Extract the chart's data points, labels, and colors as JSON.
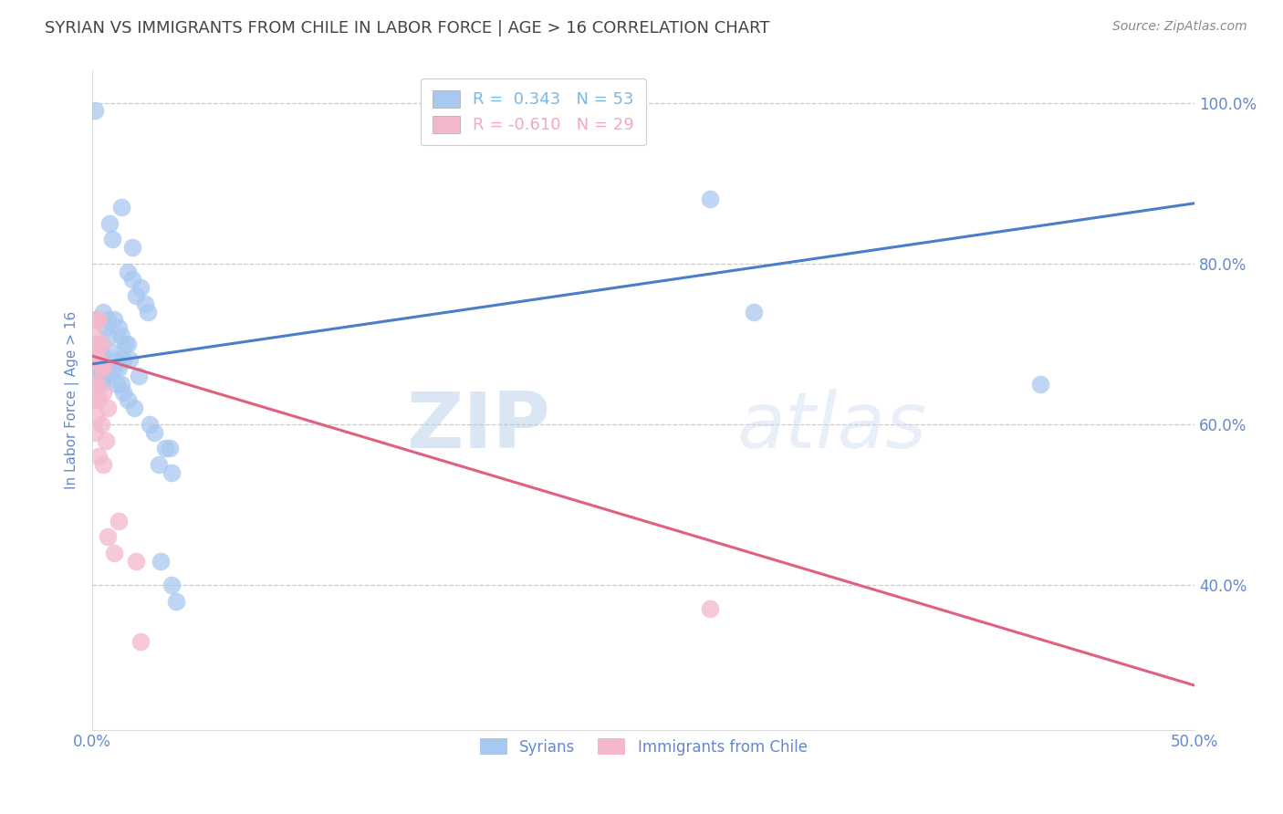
{
  "title": "SYRIAN VS IMMIGRANTS FROM CHILE IN LABOR FORCE | AGE > 16 CORRELATION CHART",
  "source": "Source: ZipAtlas.com",
  "ylabel": "In Labor Force | Age > 16",
  "xlim": [
    0.0,
    0.5
  ],
  "ylim": [
    0.22,
    1.04
  ],
  "yticks": [
    0.4,
    0.6,
    0.8,
    1.0
  ],
  "xticks": [
    0.0,
    0.1,
    0.2,
    0.3,
    0.4,
    0.5
  ],
  "xtick_labels": [
    "0.0%",
    "",
    "",
    "",
    "",
    "50.0%"
  ],
  "ytick_labels": [
    "40.0%",
    "60.0%",
    "80.0%",
    "100.0%"
  ],
  "legend_entries": [
    {
      "label": "R =  0.343   N = 53",
      "color": "#7ab8e8"
    },
    {
      "label": "R = -0.610   N = 29",
      "color": "#f4a8be"
    }
  ],
  "syrian_color": "#a8c8f0",
  "chile_color": "#f4b8cc",
  "syrian_line_color": "#4a7ec8",
  "chile_line_color": "#e06080",
  "syrians": [
    [
      0.001,
      0.99
    ],
    [
      0.013,
      0.87
    ],
    [
      0.018,
      0.82
    ],
    [
      0.008,
      0.85
    ],
    [
      0.009,
      0.83
    ],
    [
      0.016,
      0.79
    ],
    [
      0.018,
      0.78
    ],
    [
      0.02,
      0.76
    ],
    [
      0.022,
      0.77
    ],
    [
      0.024,
      0.75
    ],
    [
      0.005,
      0.74
    ],
    [
      0.007,
      0.73
    ],
    [
      0.01,
      0.73
    ],
    [
      0.025,
      0.74
    ],
    [
      0.006,
      0.72
    ],
    [
      0.008,
      0.71
    ],
    [
      0.012,
      0.72
    ],
    [
      0.013,
      0.71
    ],
    [
      0.015,
      0.7
    ],
    [
      0.016,
      0.7
    ],
    [
      0.002,
      0.7
    ],
    [
      0.003,
      0.69
    ],
    [
      0.004,
      0.69
    ],
    [
      0.009,
      0.69
    ],
    [
      0.011,
      0.68
    ],
    [
      0.014,
      0.68
    ],
    [
      0.017,
      0.68
    ],
    [
      0.001,
      0.67
    ],
    [
      0.006,
      0.67
    ],
    [
      0.01,
      0.67
    ],
    [
      0.012,
      0.67
    ],
    [
      0.003,
      0.66
    ],
    [
      0.005,
      0.66
    ],
    [
      0.007,
      0.66
    ],
    [
      0.021,
      0.66
    ],
    [
      0.004,
      0.65
    ],
    [
      0.011,
      0.65
    ],
    [
      0.013,
      0.65
    ],
    [
      0.014,
      0.64
    ],
    [
      0.016,
      0.63
    ],
    [
      0.019,
      0.62
    ],
    [
      0.026,
      0.6
    ],
    [
      0.028,
      0.59
    ],
    [
      0.033,
      0.57
    ],
    [
      0.035,
      0.57
    ],
    [
      0.03,
      0.55
    ],
    [
      0.036,
      0.54
    ],
    [
      0.031,
      0.43
    ],
    [
      0.038,
      0.38
    ],
    [
      0.28,
      0.88
    ],
    [
      0.3,
      0.74
    ],
    [
      0.43,
      0.65
    ],
    [
      0.036,
      0.4
    ]
  ],
  "chile": [
    [
      0.001,
      0.73
    ],
    [
      0.002,
      0.73
    ],
    [
      0.003,
      0.73
    ],
    [
      0.001,
      0.71
    ],
    [
      0.002,
      0.7
    ],
    [
      0.004,
      0.7
    ],
    [
      0.001,
      0.68
    ],
    [
      0.002,
      0.68
    ],
    [
      0.003,
      0.68
    ],
    [
      0.004,
      0.67
    ],
    [
      0.005,
      0.67
    ],
    [
      0.001,
      0.65
    ],
    [
      0.002,
      0.65
    ],
    [
      0.005,
      0.64
    ],
    [
      0.001,
      0.63
    ],
    [
      0.003,
      0.63
    ],
    [
      0.007,
      0.62
    ],
    [
      0.002,
      0.61
    ],
    [
      0.004,
      0.6
    ],
    [
      0.001,
      0.59
    ],
    [
      0.006,
      0.58
    ],
    [
      0.003,
      0.56
    ],
    [
      0.005,
      0.55
    ],
    [
      0.007,
      0.46
    ],
    [
      0.01,
      0.44
    ],
    [
      0.012,
      0.48
    ],
    [
      0.02,
      0.43
    ],
    [
      0.022,
      0.33
    ],
    [
      0.28,
      0.37
    ]
  ],
  "blue_line": {
    "x0": 0.0,
    "y0": 0.675,
    "x1": 0.5,
    "y1": 0.875
  },
  "pink_line": {
    "x0": 0.0,
    "y0": 0.685,
    "x1": 0.5,
    "y1": 0.275
  },
  "background_color": "#ffffff",
  "grid_color": "#cccccc",
  "title_color": "#444444",
  "tick_color": "#6688cc"
}
